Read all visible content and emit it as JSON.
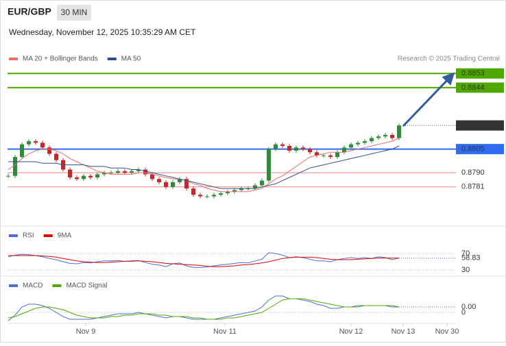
{
  "header": {
    "symbol": "EUR/GBP",
    "timeframe": "30 MIN",
    "datetime": "Wednesday, November 12, 2025 10:35:29 AM CET"
  },
  "chart_data": [
    {
      "type": "candlestick",
      "credit": "Research © 2025 Trading Central",
      "ylim": [
        0.8757,
        0.8867
      ],
      "xlim": [
        0,
        65.3
      ],
      "up_color": "#2e8b3a",
      "down_color": "#c62828",
      "values": [
        0.8788,
        0.88,
        0.8808,
        0.881,
        0.8809,
        0.8806,
        0.8802,
        0.8798,
        0.8792,
        0.8787,
        0.8786,
        0.8788,
        0.8787,
        0.8789,
        0.879,
        0.879,
        0.8791,
        0.879,
        0.8791,
        0.8792,
        0.8789,
        0.8786,
        0.8784,
        0.8781,
        0.8784,
        0.8786,
        0.878,
        0.8776,
        0.8775,
        0.8775,
        0.8776,
        0.8777,
        0.8778,
        0.8779,
        0.878,
        0.878,
        0.8782,
        0.8785,
        0.8805,
        0.8808,
        0.8807,
        0.8804,
        0.8806,
        0.8805,
        0.8803,
        0.8801,
        0.8801,
        0.88,
        0.8803,
        0.8806,
        0.8808,
        0.8809,
        0.881,
        0.8812,
        0.8813,
        0.8814,
        0.8812,
        0.882
      ],
      "series": [
        {
          "name": "MA 20 + Bollinger Bands",
          "color": "#f06a6a",
          "values": [
            0.8792,
            0.8795,
            0.8799,
            0.8802,
            0.8804,
            0.8805,
            0.8805,
            0.8804,
            0.8802,
            0.8799,
            0.8797,
            0.8795,
            0.8793,
            0.8791,
            0.879,
            0.8789,
            0.8789,
            0.8789,
            0.8789,
            0.879,
            0.879,
            0.8789,
            0.8788,
            0.8787,
            0.8786,
            0.8786,
            0.8785,
            0.8783,
            0.8782,
            0.878,
            0.8779,
            0.8778,
            0.8778,
            0.8778,
            0.8778,
            0.8778,
            0.8779,
            0.878,
            0.8783,
            0.8786,
            0.8788,
            0.8791,
            0.8794,
            0.8797,
            0.88,
            0.8801,
            0.8802,
            0.8803,
            0.8803,
            0.8803,
            0.8804,
            0.8805,
            0.8806,
            0.8807,
            0.8808,
            0.8809,
            0.881,
            0.8812
          ]
        },
        {
          "name": "MA 50",
          "color": "#2b4f8c",
          "values": [
            0.8797,
            0.8797,
            0.8797,
            0.8797,
            0.8797,
            0.8796,
            0.8796,
            0.8796,
            0.8795,
            0.8795,
            0.8795,
            0.8795,
            0.8794,
            0.8794,
            0.8794,
            0.8793,
            0.8793,
            0.8793,
            0.8792,
            0.8792,
            0.8791,
            0.879,
            0.8789,
            0.8788,
            0.8787,
            0.8786,
            0.8785,
            0.8784,
            0.8783,
            0.8782,
            0.8781,
            0.878,
            0.878,
            0.878,
            0.878,
            0.878,
            0.878,
            0.8781,
            0.8782,
            0.8783,
            0.8785,
            0.8787,
            0.8789,
            0.8791,
            0.8793,
            0.8794,
            0.8795,
            0.8796,
            0.8797,
            0.8798,
            0.8799,
            0.88,
            0.8801,
            0.8802,
            0.8803,
            0.8804,
            0.8805,
            0.8807
          ]
        }
      ],
      "levels": [
        {
          "value": 0.8853,
          "color": "#4fa800",
          "tag": "box"
        },
        {
          "value": 0.8844,
          "color": "#4fa800",
          "tag": "box"
        },
        {
          "value": {
            "value": 0.882,
            "label": "0.8820"
          },
          "color": "#333333",
          "tag": "box",
          "dotted": true
        },
        {
          "value": 0.8805,
          "color": "#2f6cf0",
          "tag": "box"
        },
        {
          "value": {
            "value": 0.879,
            "label": "0.8790"
          },
          "color": "#e03030",
          "tag": "plain"
        },
        {
          "value": 0.8781,
          "color": "#e03030",
          "tag": "plain"
        }
      ]
    },
    {
      "type": "line",
      "ylim": [
        20,
        100
      ],
      "xlim": [
        0,
        65.3
      ],
      "yticks": [
        30,
        70
      ],
      "series": [
        {
          "name": "RSI",
          "color": "#4a6fd8",
          "values": [
            62,
            66,
            68,
            67,
            65,
            62,
            58,
            55,
            50,
            46,
            45,
            48,
            47,
            50,
            52,
            52,
            53,
            51,
            52,
            53,
            48,
            44,
            42,
            38,
            45,
            47,
            40,
            36,
            36,
            37,
            40,
            42,
            44,
            46,
            48,
            47,
            52,
            56,
            72,
            70,
            66,
            60,
            62,
            60,
            56,
            52,
            52,
            50,
            55,
            58,
            60,
            58,
            60,
            58,
            62,
            60,
            55,
            58.83
          ]
        },
        {
          "name": "9MA",
          "color": "#e00000",
          "values": [
            65,
            65,
            65,
            65,
            65,
            64,
            63,
            61,
            58,
            55,
            52,
            50,
            49,
            48,
            48,
            49,
            50,
            51,
            51,
            52,
            51,
            50,
            48,
            46,
            45,
            44,
            43,
            42,
            41,
            39,
            38,
            38,
            39,
            40,
            42,
            43,
            45,
            47,
            50,
            54,
            58,
            60,
            61,
            61,
            61,
            60,
            58,
            56,
            55,
            55,
            55,
            56,
            57,
            58,
            59,
            59,
            59,
            59
          ]
        }
      ]
    },
    {
      "type": "line",
      "ylim": [
        -0.0007,
        0.0023
      ],
      "xlim": [
        0,
        65.3
      ],
      "yticks": [
        0
      ],
      "current": {
        "value": 0.0004,
        "label": "0.00"
      },
      "xticks": [
        {
          "value": 11.3,
          "label": "Nov 9"
        },
        {
          "value": 31.6,
          "label": "Nov 11"
        },
        {
          "value": 50,
          "label": "Nov 12"
        },
        {
          "value": 57.6,
          "label": "Nov 13"
        },
        {
          "value": 64,
          "label": "Nov 30"
        }
      ],
      "series": [
        {
          "name": "MACD",
          "color": "#4a6fd8",
          "values": [
            -0.0006,
            -0.0002,
            0.0004,
            0.0006,
            0.0006,
            0.0005,
            0.0003,
            0.0,
            -0.0003,
            -0.0005,
            -0.0005,
            -0.0005,
            -0.0005,
            -0.0004,
            -0.0003,
            -0.0002,
            -0.0001,
            -0.0001,
            -0.0001,
            0.0,
            -0.0001,
            -0.0002,
            -0.0003,
            -0.0004,
            -0.0003,
            -0.0003,
            -0.0004,
            -0.0005,
            -0.0005,
            -0.0005,
            -0.0005,
            -0.0004,
            -0.0003,
            -0.0002,
            -0.0001,
            0.0,
            0.0001,
            0.0004,
            0.0009,
            0.0012,
            0.0012,
            0.001,
            0.001,
            0.0009,
            0.0008,
            0.0006,
            0.0005,
            0.0003,
            0.0003,
            0.0004,
            0.0004,
            0.0005,
            0.0005,
            0.0005,
            0.0005,
            0.0005,
            0.0004,
            0.0004
          ]
        },
        {
          "name": "MACD Signal",
          "color": "#4fa800",
          "values": [
            -0.0004,
            -0.0003,
            -0.0001,
            0.0001,
            0.0003,
            0.0004,
            0.0004,
            0.0003,
            0.0002,
            0.0,
            -0.0002,
            -0.0003,
            -0.0004,
            -0.0004,
            -0.0004,
            -0.0003,
            -0.0003,
            -0.0002,
            -0.0002,
            -0.0001,
            -0.0001,
            -0.0001,
            -0.0002,
            -0.0002,
            -0.0003,
            -0.0003,
            -0.0003,
            -0.0004,
            -0.0004,
            -0.0005,
            -0.0005,
            -0.0005,
            -0.0004,
            -0.0004,
            -0.0003,
            -0.0002,
            -0.0001,
            0.0,
            0.0003,
            0.0006,
            0.0009,
            0.001,
            0.001,
            0.001,
            0.0009,
            0.0008,
            0.0007,
            0.0006,
            0.0005,
            0.0004,
            0.0004,
            0.0004,
            0.0005,
            0.0005,
            0.0005,
            0.0005,
            0.0005,
            0.0004
          ]
        }
      ]
    }
  ]
}
